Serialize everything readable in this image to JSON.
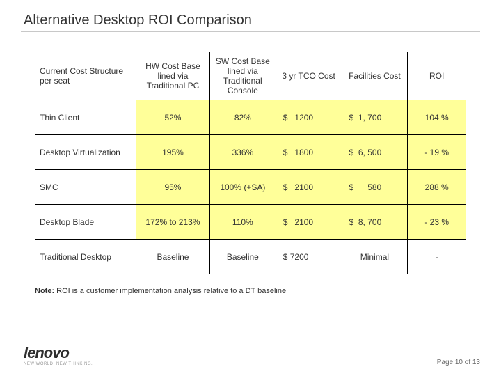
{
  "title": "Alternative Desktop ROI Comparison",
  "table": {
    "headers": [
      "Current Cost Structure per seat",
      "HW Cost Base lined via Traditional PC",
      "SW Cost Base lined via Traditional Console",
      "3 yr TCO Cost",
      "Facilities Cost",
      "ROI"
    ],
    "rows": [
      {
        "label": "Thin Client",
        "hw": "52%",
        "sw": "82%",
        "tco": "$   1200",
        "fac": "$  1, 700",
        "roi": "104 %"
      },
      {
        "label": "Desktop Virtualization",
        "hw": "195%",
        "sw": "336%",
        "tco": "$   1800",
        "fac": "$  6, 500",
        "roi": "- 19 %"
      },
      {
        "label": "SMC",
        "hw": "95%",
        "sw": "100% (+SA)",
        "tco": "$   2100",
        "fac": "$      580",
        "roi": "288 %"
      },
      {
        "label": "Desktop Blade",
        "hw": "172% to 213%",
        "sw": "110%",
        "tco": "$   2100",
        "fac": "$  8, 700",
        "roi": "- 23 %"
      },
      {
        "label": "Traditional Desktop",
        "hw": "Baseline",
        "sw": "Baseline",
        "tco": "$ 7200",
        "fac": "Minimal",
        "roi": "-"
      }
    ],
    "highlight_rows": [
      0,
      1,
      2,
      3
    ]
  },
  "note": {
    "label": "Note:",
    "text": "  ROI is a customer implementation analysis relative to a DT baseline"
  },
  "logo": {
    "main": "lenovo",
    "tag": "NEW WORLD. NEW THINKING."
  },
  "pager": "Page 10 of 13",
  "colors": {
    "highlight": "#ffff99",
    "border": "#000000",
    "text": "#333333",
    "divider": "#c8c8c8"
  }
}
